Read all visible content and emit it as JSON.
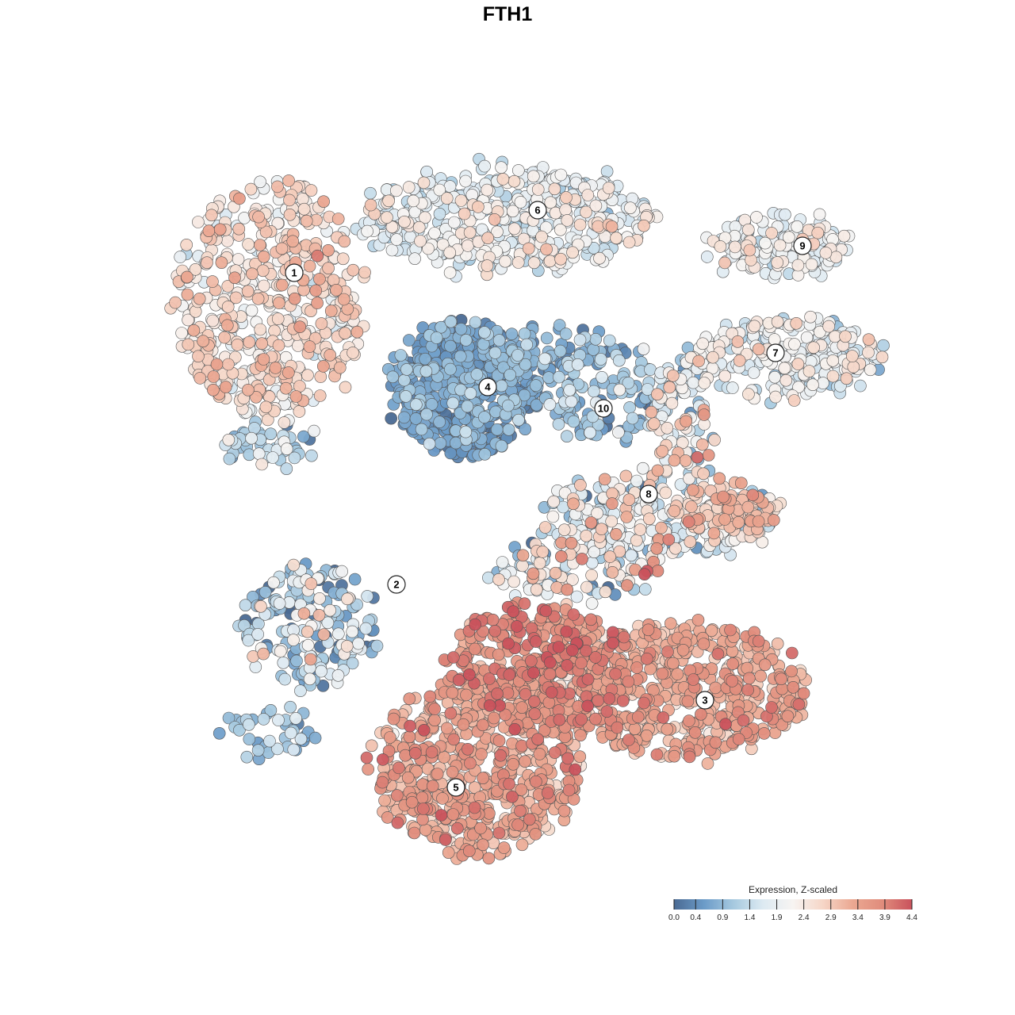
{
  "chart_data": {
    "type": "scatter",
    "title": "FTH1",
    "clusters": [
      {
        "label": "1"
      },
      {
        "label": "2"
      },
      {
        "label": "3"
      },
      {
        "label": "4"
      },
      {
        "label": "5"
      },
      {
        "label": "6"
      },
      {
        "label": "7"
      },
      {
        "label": "8"
      },
      {
        "label": "9"
      },
      {
        "label": "10"
      }
    ],
    "colorbar": {
      "title": "Expression, Z-scaled",
      "ticks": [
        "0.0",
        "0.4",
        "0.9",
        "1.4",
        "1.9",
        "2.4",
        "2.9",
        "3.4",
        "3.9",
        "4.4"
      ],
      "range": [
        0.0,
        4.4
      ],
      "colors": [
        "#4a6a93",
        "#6b9bc8",
        "#a6c9df",
        "#ddeaf2",
        "#f7f4f2",
        "#f6d6c7",
        "#eba892",
        "#e08c7c",
        "#c9525c"
      ]
    },
    "point_border": "#555555",
    "legend_position": "bottom-right",
    "grid": false,
    "axes_visible": false
  }
}
